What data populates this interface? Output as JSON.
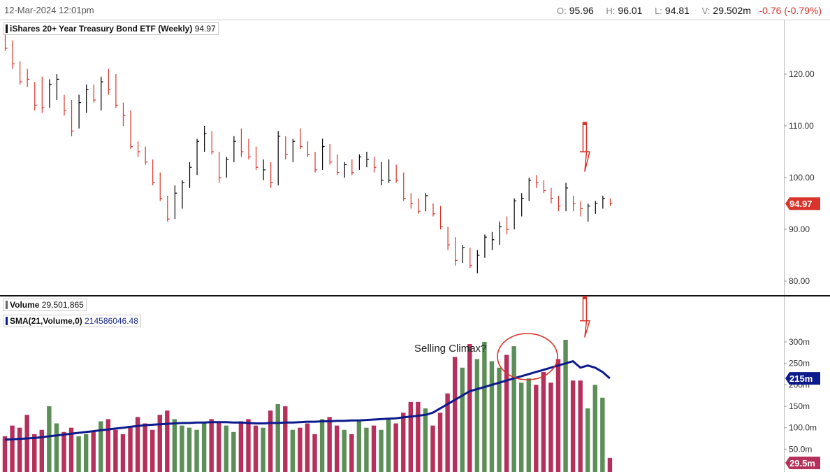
{
  "header": {
    "date": "12-Mar-2024 12:01pm",
    "open_label": "O:",
    "open": "95.96",
    "high_label": "H:",
    "high": "96.01",
    "low_label": "L:",
    "low": "94.81",
    "vol_label": "V:",
    "vol": "29.502m",
    "change": "-0.76 (-0.79%)"
  },
  "price_legend": {
    "name": "iShares 20+ Year Treasury Bond ETF (Weekly)",
    "value": "94.97"
  },
  "volume_legend": {
    "name": "Volume",
    "value": "29,501,865"
  },
  "sma_legend": {
    "name": "SMA(21,Volume,0)",
    "value": "214586046.48"
  },
  "price_axis_ticks": [
    "120.00",
    "110.00",
    "100.00",
    "90.00",
    "80.00"
  ],
  "volume_axis_ticks": [
    "300m",
    "250m",
    "200m",
    "150m",
    "100.0m",
    "50.0m"
  ],
  "last_price_tag": "94.97",
  "sma_tag": "215m",
  "last_volume_tag": "29.5m",
  "annotation": "Selling Climax?",
  "colors": {
    "up": "#000000",
    "down": "#d9342b",
    "vol_up": "#5b8f57",
    "vol_down": "#b5305a",
    "sma": "#0d1a8c",
    "annotation": "#d9342b",
    "arrow": "#d9342b"
  },
  "chart_data": {
    "type": "ohlc",
    "title": "iShares 20+ Year Treasury Bond ETF (Weekly)",
    "ylim": [
      78,
      132
    ],
    "volume_ylim": [
      0,
      330
    ],
    "bars": [
      {
        "h": 129.0,
        "l": 124.5,
        "c": 125.0,
        "v": 80,
        "up": false
      },
      {
        "h": 126.5,
        "l": 121.0,
        "c": 122.0,
        "v": 105,
        "up": false
      },
      {
        "h": 122.5,
        "l": 118.0,
        "c": 118.5,
        "v": 100,
        "up": false
      },
      {
        "h": 121.0,
        "l": 117.5,
        "c": 119.0,
        "v": 130,
        "up": false
      },
      {
        "h": 118.5,
        "l": 113.0,
        "c": 114.0,
        "v": 85,
        "up": false
      },
      {
        "h": 119.5,
        "l": 112.5,
        "c": 113.5,
        "v": 95,
        "up": false
      },
      {
        "h": 119.0,
        "l": 113.5,
        "c": 118.0,
        "v": 150,
        "up": true
      },
      {
        "h": 120.0,
        "l": 115.0,
        "c": 119.0,
        "v": 110,
        "up": true
      },
      {
        "h": 116.0,
        "l": 112.0,
        "c": 113.0,
        "v": 90,
        "up": false
      },
      {
        "h": 115.0,
        "l": 108.0,
        "c": 109.0,
        "v": 100,
        "up": false
      },
      {
        "h": 116.0,
        "l": 109.5,
        "c": 114.5,
        "v": 80,
        "up": true
      },
      {
        "h": 118.0,
        "l": 112.5,
        "c": 117.0,
        "v": 85,
        "up": true
      },
      {
        "h": 118.0,
        "l": 114.5,
        "c": 115.0,
        "v": 90,
        "up": false
      },
      {
        "h": 119.5,
        "l": 113.0,
        "c": 118.5,
        "v": 115,
        "up": true
      },
      {
        "h": 121.0,
        "l": 116.0,
        "c": 117.0,
        "v": 120,
        "up": false
      },
      {
        "h": 120.0,
        "l": 113.5,
        "c": 114.0,
        "v": 95,
        "up": false
      },
      {
        "h": 114.5,
        "l": 110.0,
        "c": 112.0,
        "v": 85,
        "up": false
      },
      {
        "h": 113.0,
        "l": 105.5,
        "c": 106.0,
        "v": 100,
        "up": false
      },
      {
        "h": 107.0,
        "l": 104.0,
        "c": 105.0,
        "v": 125,
        "up": false
      },
      {
        "h": 106.0,
        "l": 102.5,
        "c": 103.0,
        "v": 110,
        "up": false
      },
      {
        "h": 103.5,
        "l": 98.5,
        "c": 99.0,
        "v": 95,
        "up": false
      },
      {
        "h": 101.0,
        "l": 95.5,
        "c": 96.0,
        "v": 130,
        "up": false
      },
      {
        "h": 96.5,
        "l": 91.5,
        "c": 92.0,
        "v": 140,
        "up": false
      },
      {
        "h": 98.5,
        "l": 92.0,
        "c": 97.0,
        "v": 120,
        "up": true
      },
      {
        "h": 99.5,
        "l": 94.0,
        "c": 99.0,
        "v": 105,
        "up": true
      },
      {
        "h": 103.0,
        "l": 98.0,
        "c": 102.0,
        "v": 100,
        "up": true
      },
      {
        "h": 107.5,
        "l": 100.5,
        "c": 107.0,
        "v": 95,
        "up": true
      },
      {
        "h": 110.0,
        "l": 105.0,
        "c": 108.5,
        "v": 110,
        "up": true
      },
      {
        "h": 109.0,
        "l": 104.5,
        "c": 105.0,
        "v": 120,
        "up": false
      },
      {
        "h": 105.0,
        "l": 99.0,
        "c": 100.0,
        "v": 115,
        "up": false
      },
      {
        "h": 104.0,
        "l": 100.0,
        "c": 103.5,
        "v": 105,
        "up": true
      },
      {
        "h": 108.0,
        "l": 103.0,
        "c": 107.0,
        "v": 90,
        "up": true
      },
      {
        "h": 109.5,
        "l": 104.0,
        "c": 105.0,
        "v": 115,
        "up": false
      },
      {
        "h": 107.5,
        "l": 103.5,
        "c": 104.0,
        "v": 120,
        "up": false
      },
      {
        "h": 106.0,
        "l": 101.5,
        "c": 102.0,
        "v": 105,
        "up": false
      },
      {
        "h": 103.5,
        "l": 99.5,
        "c": 101.5,
        "v": 100,
        "up": true
      },
      {
        "h": 103.0,
        "l": 98.0,
        "c": 99.0,
        "v": 140,
        "up": false
      },
      {
        "h": 109.0,
        "l": 98.5,
        "c": 108.0,
        "v": 155,
        "up": true
      },
      {
        "h": 108.0,
        "l": 103.5,
        "c": 104.5,
        "v": 150,
        "up": false
      },
      {
        "h": 107.5,
        "l": 103.0,
        "c": 107.0,
        "v": 95,
        "up": true
      },
      {
        "h": 109.5,
        "l": 105.5,
        "c": 106.0,
        "v": 100,
        "up": false
      },
      {
        "h": 107.0,
        "l": 104.0,
        "c": 104.5,
        "v": 110,
        "up": false
      },
      {
        "h": 105.0,
        "l": 101.0,
        "c": 101.5,
        "v": 85,
        "up": false
      },
      {
        "h": 107.5,
        "l": 101.5,
        "c": 106.0,
        "v": 120,
        "up": true
      },
      {
        "h": 106.5,
        "l": 102.5,
        "c": 103.0,
        "v": 125,
        "up": false
      },
      {
        "h": 104.5,
        "l": 100.5,
        "c": 101.0,
        "v": 105,
        "up": false
      },
      {
        "h": 103.0,
        "l": 100.0,
        "c": 102.5,
        "v": 95,
        "up": true
      },
      {
        "h": 103.5,
        "l": 100.5,
        "c": 101.0,
        "v": 85,
        "up": false
      },
      {
        "h": 104.5,
        "l": 101.5,
        "c": 104.0,
        "v": 115,
        "up": true
      },
      {
        "h": 105.0,
        "l": 102.0,
        "c": 103.5,
        "v": 100,
        "up": true
      },
      {
        "h": 104.0,
        "l": 101.0,
        "c": 102.0,
        "v": 105,
        "up": false
      },
      {
        "h": 103.0,
        "l": 98.5,
        "c": 99.5,
        "v": 95,
        "up": true
      },
      {
        "h": 103.5,
        "l": 99.0,
        "c": 99.5,
        "v": 120,
        "up": true
      },
      {
        "h": 102.5,
        "l": 99.0,
        "c": 99.5,
        "v": 110,
        "up": false
      },
      {
        "h": 101.0,
        "l": 95.5,
        "c": 96.0,
        "v": 135,
        "up": false
      },
      {
        "h": 97.0,
        "l": 94.0,
        "c": 95.0,
        "v": 160,
        "up": false
      },
      {
        "h": 96.0,
        "l": 93.0,
        "c": 93.5,
        "v": 160,
        "up": false
      },
      {
        "h": 97.0,
        "l": 93.5,
        "c": 96.5,
        "v": 145,
        "up": true
      },
      {
        "h": 95.0,
        "l": 92.5,
        "c": 93.0,
        "v": 105,
        "up": false
      },
      {
        "h": 94.5,
        "l": 90.0,
        "c": 90.5,
        "v": 135,
        "up": false
      },
      {
        "h": 90.5,
        "l": 86.0,
        "c": 87.0,
        "v": 180,
        "up": false
      },
      {
        "h": 88.5,
        "l": 83.0,
        "c": 84.0,
        "v": 265,
        "up": false
      },
      {
        "h": 87.0,
        "l": 83.5,
        "c": 86.5,
        "v": 240,
        "up": true
      },
      {
        "h": 86.5,
        "l": 82.5,
        "c": 83.0,
        "v": 295,
        "up": false
      },
      {
        "h": 86.0,
        "l": 81.5,
        "c": 85.0,
        "v": 260,
        "up": true
      },
      {
        "h": 89.0,
        "l": 84.5,
        "c": 88.5,
        "v": 300,
        "up": true
      },
      {
        "h": 89.5,
        "l": 86.0,
        "c": 88.0,
        "v": 255,
        "up": true
      },
      {
        "h": 91.5,
        "l": 87.0,
        "c": 90.5,
        "v": 240,
        "up": true
      },
      {
        "h": 92.5,
        "l": 89.0,
        "c": 90.0,
        "v": 270,
        "up": false
      },
      {
        "h": 96.0,
        "l": 90.0,
        "c": 95.5,
        "v": 290,
        "up": true
      },
      {
        "h": 97.0,
        "l": 92.5,
        "c": 96.0,
        "v": 205,
        "up": true
      },
      {
        "h": 100.0,
        "l": 95.5,
        "c": 99.5,
        "v": 215,
        "up": true
      },
      {
        "h": 100.5,
        "l": 98.0,
        "c": 99.0,
        "v": 200,
        "up": false
      },
      {
        "h": 99.5,
        "l": 97.0,
        "c": 97.5,
        "v": 230,
        "up": false
      },
      {
        "h": 98.0,
        "l": 95.0,
        "c": 96.0,
        "v": 205,
        "up": false
      },
      {
        "h": 96.5,
        "l": 93.5,
        "c": 94.5,
        "v": 260,
        "up": false
      },
      {
        "h": 99.0,
        "l": 93.5,
        "c": 98.0,
        "v": 305,
        "up": true
      },
      {
        "h": 96.5,
        "l": 93.5,
        "c": 95.0,
        "v": 210,
        "up": false
      },
      {
        "h": 95.5,
        "l": 92.5,
        "c": 94.0,
        "v": 210,
        "up": false
      },
      {
        "h": 95.0,
        "l": 91.5,
        "c": 94.5,
        "v": 145,
        "up": true
      },
      {
        "h": 95.5,
        "l": 93.0,
        "c": 95.0,
        "v": 200,
        "up": true
      },
      {
        "h": 96.5,
        "l": 94.0,
        "c": 96.0,
        "v": 170,
        "up": true
      },
      {
        "h": 96.0,
        "l": 94.5,
        "c": 95.0,
        "v": 29.5,
        "up": false
      }
    ],
    "sma": [
      72,
      73,
      74,
      75,
      76,
      78,
      80,
      82,
      84,
      86,
      88,
      90,
      92,
      94,
      96,
      98,
      100,
      102,
      104,
      106,
      107,
      108,
      109,
      110,
      111,
      111,
      112,
      112,
      113,
      113,
      113,
      112,
      112,
      111,
      110,
      110,
      111,
      111,
      112,
      112,
      113,
      114,
      114,
      115,
      115,
      116,
      116,
      117,
      117,
      118,
      119,
      120,
      121,
      122,
      124,
      126,
      128,
      130,
      135,
      145,
      155,
      165,
      175,
      185,
      190,
      195,
      200,
      205,
      210,
      215,
      220,
      225,
      230,
      235,
      240,
      245,
      250,
      255,
      240,
      245,
      240,
      230,
      215
    ]
  }
}
